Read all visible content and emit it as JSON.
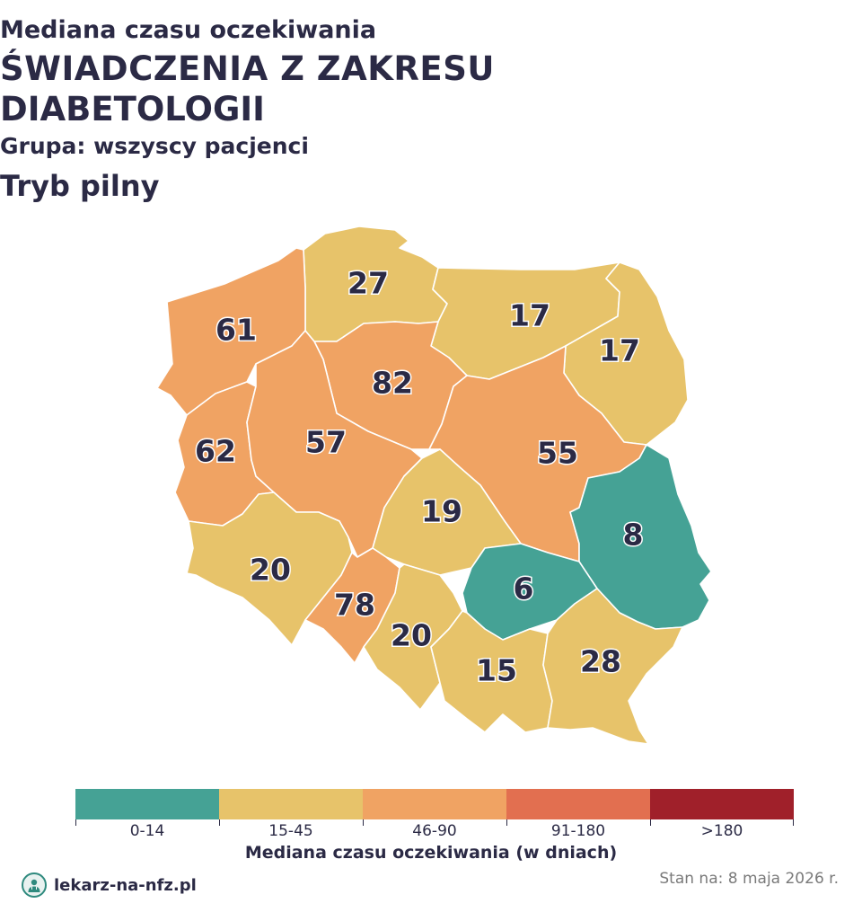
{
  "header": {
    "title_line1": "Mediana czasu oczekiwania",
    "title_line2": "ŚWIADCZENIA Z ZAKRESU",
    "title_line3": "DIABETOLOGII",
    "group": "Grupa: wszyscy pacjenci",
    "mode": "Tryb pilny"
  },
  "map": {
    "regions": [
      {
        "id": "pomorskie",
        "value": "27",
        "category": "15-45"
      },
      {
        "id": "warminsko-mazurskie",
        "value": "17",
        "category": "15-45"
      },
      {
        "id": "podlaskie",
        "value": "17",
        "category": "15-45"
      },
      {
        "id": "zachodniopomorskie",
        "value": "61",
        "category": "46-90"
      },
      {
        "id": "kujawsko-pomorskie",
        "value": "82",
        "category": "46-90"
      },
      {
        "id": "lubuskie",
        "value": "62",
        "category": "46-90"
      },
      {
        "id": "wielkopolskie",
        "value": "57",
        "category": "46-90"
      },
      {
        "id": "mazowieckie",
        "value": "55",
        "category": "46-90"
      },
      {
        "id": "lodzkie",
        "value": "19",
        "category": "15-45"
      },
      {
        "id": "lubelskie",
        "value": "8",
        "category": "0-14"
      },
      {
        "id": "dolnoslaskie",
        "value": "20",
        "category": "15-45"
      },
      {
        "id": "opolskie",
        "value": "78",
        "category": "46-90"
      },
      {
        "id": "slaskie",
        "value": "20",
        "category": "15-45"
      },
      {
        "id": "swietokrzyskie",
        "value": "6",
        "category": "0-14"
      },
      {
        "id": "malopolskie",
        "value": "15",
        "category": "15-45"
      },
      {
        "id": "podkarpackie",
        "value": "28",
        "category": "15-45"
      }
    ]
  },
  "legend": {
    "title": "Mediana czasu oczekiwania (w dniach)",
    "bins": [
      {
        "label": "0-14",
        "color": "#45a295"
      },
      {
        "label": "15-45",
        "color": "#e7c36a"
      },
      {
        "label": "46-90",
        "color": "#f0a363"
      },
      {
        "label": "91-180",
        "color": "#e26f50"
      },
      {
        "label": ">180",
        "color": "#a0202a"
      }
    ]
  },
  "footer": {
    "brand": "lekarz-na-nfz.pl",
    "brand_icon": "doctor-icon",
    "date": "Stan na: 8 maja 2026 r."
  }
}
